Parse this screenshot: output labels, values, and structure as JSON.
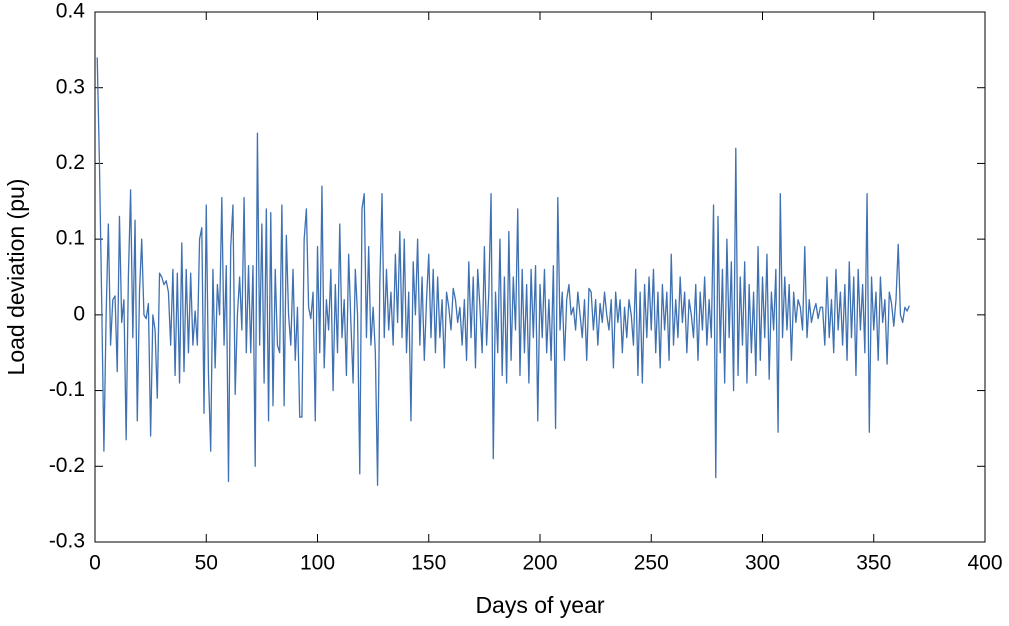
{
  "chart_data": {
    "type": "line",
    "xlabel": "Days of year",
    "ylabel": "Load deviation (pu)",
    "xlim": [
      0,
      400
    ],
    "ylim": [
      -0.3,
      0.4
    ],
    "xticks": [
      0,
      50,
      100,
      150,
      200,
      250,
      300,
      350,
      400
    ],
    "yticks": [
      -0.3,
      -0.2,
      -0.1,
      0,
      0.1,
      0.2,
      0.3,
      0.4
    ],
    "grid": false,
    "x": [
      1,
      2,
      3,
      4,
      5,
      6,
      7,
      8,
      9,
      10,
      11,
      12,
      13,
      14,
      15,
      16,
      17,
      18,
      19,
      20,
      21,
      22,
      23,
      24,
      25,
      26,
      27,
      28,
      29,
      30,
      31,
      32,
      33,
      34,
      35,
      36,
      37,
      38,
      39,
      40,
      41,
      42,
      43,
      44,
      45,
      46,
      47,
      48,
      49,
      50,
      51,
      52,
      53,
      54,
      55,
      56,
      57,
      58,
      59,
      60,
      61,
      62,
      63,
      64,
      65,
      66,
      67,
      68,
      69,
      70,
      71,
      72,
      73,
      74,
      75,
      76,
      77,
      78,
      79,
      80,
      81,
      82,
      83,
      84,
      85,
      86,
      87,
      88,
      89,
      90,
      91,
      92,
      93,
      94,
      95,
      96,
      97,
      98,
      99,
      100,
      101,
      102,
      103,
      104,
      105,
      106,
      107,
      108,
      109,
      110,
      111,
      112,
      113,
      114,
      115,
      116,
      117,
      118,
      119,
      120,
      121,
      122,
      123,
      124,
      125,
      126,
      127,
      128,
      129,
      130,
      131,
      132,
      133,
      134,
      135,
      136,
      137,
      138,
      139,
      140,
      141,
      142,
      143,
      144,
      145,
      146,
      147,
      148,
      149,
      150,
      151,
      152,
      153,
      154,
      155,
      156,
      157,
      158,
      159,
      160,
      161,
      162,
      163,
      164,
      165,
      166,
      167,
      168,
      169,
      170,
      171,
      172,
      173,
      174,
      175,
      176,
      177,
      178,
      179,
      180,
      181,
      182,
      183,
      184,
      185,
      186,
      187,
      188,
      189,
      190,
      191,
      192,
      193,
      194,
      195,
      196,
      197,
      198,
      199,
      200,
      201,
      202,
      203,
      204,
      205,
      206,
      207,
      208,
      209,
      210,
      211,
      212,
      213,
      214,
      215,
      216,
      217,
      218,
      219,
      220,
      221,
      222,
      223,
      224,
      225,
      226,
      227,
      228,
      229,
      230,
      231,
      232,
      233,
      234,
      235,
      236,
      237,
      238,
      239,
      240,
      241,
      242,
      243,
      244,
      245,
      246,
      247,
      248,
      249,
      250,
      251,
      252,
      253,
      254,
      255,
      256,
      257,
      258,
      259,
      260,
      261,
      262,
      263,
      264,
      265,
      266,
      267,
      268,
      269,
      270,
      271,
      272,
      273,
      274,
      275,
      276,
      277,
      278,
      279,
      280,
      281,
      282,
      283,
      284,
      285,
      286,
      287,
      288,
      289,
      290,
      291,
      292,
      293,
      294,
      295,
      296,
      297,
      298,
      299,
      300,
      301,
      302,
      303,
      304,
      305,
      306,
      307,
      308,
      309,
      310,
      311,
      312,
      313,
      314,
      315,
      316,
      317,
      318,
      319,
      320,
      321,
      322,
      323,
      324,
      325,
      326,
      327,
      328,
      329,
      330,
      331,
      332,
      333,
      334,
      335,
      336,
      337,
      338,
      339,
      340,
      341,
      342,
      343,
      344,
      345,
      346,
      347,
      348,
      349,
      350,
      351,
      352,
      353,
      354,
      355,
      356,
      357,
      358,
      359,
      360,
      361,
      362,
      363,
      364,
      365,
      366
    ],
    "series": [
      {
        "color": "#3e70b2",
        "values": [
          0.34,
          0.2,
          0.02,
          -0.18,
          0.0,
          0.12,
          -0.04,
          0.02,
          0.025,
          -0.075,
          0.13,
          -0.01,
          0.02,
          -0.165,
          0.05,
          0.165,
          -0.03,
          0.125,
          -0.14,
          0.03,
          0.1,
          0.0,
          -0.005,
          0.015,
          -0.16,
          0.0,
          -0.02,
          -0.11,
          0.055,
          0.05,
          0.04,
          0.045,
          0.03,
          -0.04,
          0.06,
          -0.08,
          0.055,
          -0.09,
          0.095,
          -0.075,
          0.06,
          -0.05,
          0.055,
          -0.04,
          0.005,
          -0.04,
          0.1,
          0.115,
          -0.13,
          0.145,
          -0.08,
          -0.18,
          0.06,
          -0.07,
          0.04,
          0.0,
          0.155,
          -0.04,
          0.065,
          -0.22,
          0.09,
          0.145,
          -0.105,
          0.0,
          0.05,
          -0.02,
          0.155,
          -0.05,
          0.065,
          -0.05,
          0.065,
          -0.2,
          0.24,
          -0.04,
          0.12,
          -0.09,
          0.14,
          -0.14,
          0.135,
          -0.12,
          0.06,
          -0.04,
          -0.05,
          0.145,
          -0.12,
          0.105,
          0.0,
          -0.04,
          0.06,
          -0.06,
          0.01,
          -0.135,
          -0.135,
          0.1,
          0.14,
          0.01,
          -0.005,
          0.03,
          -0.14,
          0.09,
          -0.05,
          0.17,
          -0.07,
          0.02,
          -0.02,
          0.06,
          -0.1,
          0.04,
          -0.05,
          0.12,
          -0.03,
          0.02,
          -0.08,
          0.08,
          -0.01,
          -0.09,
          0.06,
          0.0,
          -0.21,
          0.14,
          0.16,
          -0.03,
          0.09,
          -0.04,
          0.01,
          -0.05,
          -0.225,
          0.04,
          0.16,
          -0.03,
          0.06,
          -0.02,
          0.03,
          -0.04,
          0.08,
          -0.01,
          0.11,
          -0.03,
          0.1,
          -0.05,
          0.03,
          -0.14,
          0.07,
          0.0,
          0.1,
          -0.04,
          0.05,
          -0.06,
          0.02,
          0.08,
          -0.03,
          0.06,
          -0.05,
          0.05,
          -0.03,
          0.02,
          -0.07,
          0.03,
          0.01,
          -0.02,
          0.035,
          0.02,
          -0.01,
          0.01,
          -0.04,
          0.02,
          -0.06,
          0.07,
          -0.03,
          0.05,
          -0.07,
          0.06,
          0.01,
          -0.05,
          0.09,
          -0.04,
          0.03,
          0.16,
          -0.19,
          0.03,
          -0.05,
          0.1,
          -0.08,
          0.05,
          -0.09,
          0.11,
          -0.06,
          0.05,
          -0.02,
          0.14,
          -0.08,
          0.06,
          -0.05,
          0.04,
          -0.09,
          0.06,
          -0.03,
          0.065,
          -0.14,
          0.04,
          -0.03,
          0.06,
          -0.05,
          0.02,
          -0.06,
          0.065,
          -0.15,
          0.155,
          -0.02,
          0.03,
          -0.06,
          0.02,
          0.04,
          0.0,
          0.01,
          -0.02,
          0.03,
          0.0,
          -0.03,
          0.02,
          -0.06,
          0.035,
          0.03,
          -0.02,
          0.02,
          -0.04,
          0.015,
          -0.01,
          0.03,
          0.0,
          -0.02,
          0.02,
          -0.07,
          0.03,
          -0.01,
          0.02,
          -0.05,
          0.01,
          -0.03,
          0.02,
          0.0,
          -0.04,
          0.06,
          -0.08,
          0.03,
          -0.09,
          0.04,
          -0.03,
          0.05,
          -0.02,
          0.06,
          -0.05,
          0.03,
          -0.07,
          0.04,
          -0.02,
          0.03,
          -0.06,
          0.08,
          -0.04,
          0.02,
          -0.03,
          0.05,
          -0.01,
          0.03,
          -0.05,
          0.02,
          0.0,
          -0.03,
          0.04,
          -0.06,
          0.03,
          -0.02,
          0.05,
          -0.04,
          0.02,
          -0.03,
          0.145,
          -0.215,
          0.13,
          -0.05,
          0.06,
          -0.09,
          0.1,
          -0.03,
          0.07,
          -0.1,
          0.22,
          -0.08,
          0.05,
          -0.04,
          0.07,
          -0.09,
          0.04,
          -0.05,
          0.03,
          -0.08,
          0.09,
          -0.06,
          0.05,
          -0.03,
          0.08,
          -0.085,
          0.03,
          -0.02,
          0.06,
          -0.155,
          0.16,
          -0.03,
          0.05,
          -0.02,
          0.04,
          -0.06,
          0.03,
          -0.01,
          0.02,
          0.01,
          -0.02,
          0.09,
          -0.03,
          0.02,
          -0.01,
          0.005,
          0.015,
          -0.005,
          0.01,
          0.01,
          -0.04,
          0.05,
          -0.03,
          0.02,
          -0.05,
          0.06,
          -0.02,
          0.03,
          -0.04,
          0.04,
          -0.06,
          0.07,
          -0.03,
          0.05,
          -0.08,
          0.06,
          -0.02,
          0.04,
          -0.05,
          0.16,
          -0.155,
          0.05,
          -0.02,
          0.03,
          -0.06,
          0.05,
          -0.01,
          0.02,
          -0.065,
          0.03,
          0.015,
          -0.015,
          0.02,
          0.093,
          0.0,
          -0.01,
          0.01,
          0.005,
          0.012
        ]
      }
    ]
  }
}
